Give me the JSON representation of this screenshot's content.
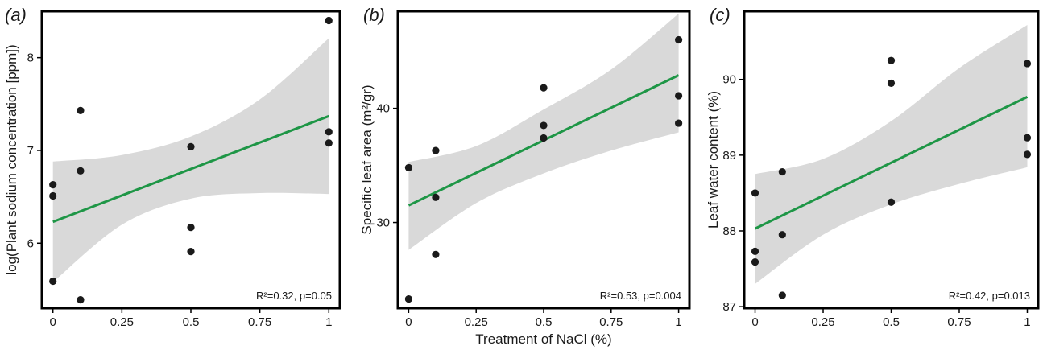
{
  "shared_xlabel": "Treatment of NaCl (%)",
  "chart_data": [
    {
      "type": "scatter",
      "panel_label": "(a)",
      "title": "",
      "xlabel": "",
      "ylabel": "log(Plant sodium concentration [ppm])",
      "xlim": [
        -0.04,
        1.04
      ],
      "ylim": [
        5.3,
        8.5
      ],
      "xticks": [
        0,
        0.25,
        0.5,
        0.75,
        1
      ],
      "xtick_labels": [
        "0",
        "0.25",
        "0.5",
        "0.75",
        "1"
      ],
      "yticks": [
        6,
        7,
        8
      ],
      "ytick_labels": [
        "6",
        "7",
        "8"
      ],
      "points": [
        {
          "x": 0,
          "y": 6.63
        },
        {
          "x": 0,
          "y": 6.51
        },
        {
          "x": 0,
          "y": 5.59
        },
        {
          "x": 0.1,
          "y": 7.43
        },
        {
          "x": 0.1,
          "y": 6.78
        },
        {
          "x": 0.1,
          "y": 5.39
        },
        {
          "x": 0.5,
          "y": 7.04
        },
        {
          "x": 0.5,
          "y": 6.17
        },
        {
          "x": 0.5,
          "y": 5.91
        },
        {
          "x": 1,
          "y": 8.4
        },
        {
          "x": 1,
          "y": 7.2
        },
        {
          "x": 1,
          "y": 7.08
        }
      ],
      "fit": {
        "x0": 0,
        "y0": 6.23,
        "x1": 1,
        "y1": 7.37
      },
      "ci_upper": [
        [
          0,
          6.88
        ],
        [
          0.25,
          6.95
        ],
        [
          0.5,
          7.15
        ],
        [
          0.75,
          7.55
        ],
        [
          1,
          8.21
        ]
      ],
      "ci_lower": [
        [
          0,
          5.58
        ],
        [
          0.25,
          6.2
        ],
        [
          0.5,
          6.48
        ],
        [
          0.75,
          6.54
        ],
        [
          1,
          6.53
        ]
      ],
      "stat_text": "R²=0.32, p=0.05",
      "fit_color": "#1e9646",
      "band_color": "#d9d9d9",
      "point_color": "#1a1a1a"
    },
    {
      "type": "scatter",
      "panel_label": "(b)",
      "title": "",
      "xlabel": "Treatment of NaCl (%)",
      "ylabel": "Specific leaf area (m²/gr)",
      "xlim": [
        -0.04,
        1.04
      ],
      "ylim": [
        22.5,
        48.5
      ],
      "xticks": [
        0,
        0.25,
        0.5,
        0.75,
        1
      ],
      "xtick_labels": [
        "0",
        "0.25",
        "0.5",
        "0.75",
        "1"
      ],
      "yticks": [
        30,
        40
      ],
      "ytick_labels": [
        "30",
        "40"
      ],
      "points": [
        {
          "x": 0,
          "y": 34.8
        },
        {
          "x": 0,
          "y": 23.3
        },
        {
          "x": 0.1,
          "y": 36.3
        },
        {
          "x": 0.1,
          "y": 32.2
        },
        {
          "x": 0.1,
          "y": 27.2
        },
        {
          "x": 0.5,
          "y": 41.8
        },
        {
          "x": 0.5,
          "y": 38.5
        },
        {
          "x": 0.5,
          "y": 37.4
        },
        {
          "x": 1,
          "y": 46.0
        },
        {
          "x": 1,
          "y": 41.1
        },
        {
          "x": 1,
          "y": 38.7
        }
      ],
      "fit": {
        "x0": 0,
        "y0": 31.5,
        "x1": 1,
        "y1": 42.9
      },
      "ci_upper": [
        [
          0,
          35.3
        ],
        [
          0.25,
          36.7
        ],
        [
          0.5,
          39.9
        ],
        [
          0.75,
          43.4
        ],
        [
          1,
          48.3
        ]
      ],
      "ci_lower": [
        [
          0,
          27.6
        ],
        [
          0.25,
          31.7
        ],
        [
          0.5,
          34.3
        ],
        [
          0.75,
          36.3
        ],
        [
          1,
          37.9
        ]
      ],
      "stat_text": "R²=0.53, p=0.004",
      "fit_color": "#1e9646",
      "band_color": "#d9d9d9",
      "point_color": "#1a1a1a"
    },
    {
      "type": "scatter",
      "panel_label": "(c)",
      "title": "",
      "xlabel": "",
      "ylabel": "Leaf water content (%)",
      "xlim": [
        -0.04,
        1.04
      ],
      "ylim": [
        86.98,
        90.9
      ],
      "xticks": [
        0,
        0.25,
        0.5,
        0.75,
        1
      ],
      "xtick_labels": [
        "0",
        "0.25",
        "0.5",
        "0.75",
        "1"
      ],
      "yticks": [
        87,
        88,
        89,
        90
      ],
      "ytick_labels": [
        "87",
        "88",
        "89",
        "90"
      ],
      "points": [
        {
          "x": 0,
          "y": 88.5
        },
        {
          "x": 0,
          "y": 87.73
        },
        {
          "x": 0,
          "y": 87.59
        },
        {
          "x": 0.1,
          "y": 88.78
        },
        {
          "x": 0.1,
          "y": 87.95
        },
        {
          "x": 0.1,
          "y": 87.15
        },
        {
          "x": 0.5,
          "y": 90.25
        },
        {
          "x": 0.5,
          "y": 89.95
        },
        {
          "x": 0.5,
          "y": 88.38
        },
        {
          "x": 1,
          "y": 90.21
        },
        {
          "x": 1,
          "y": 89.23
        },
        {
          "x": 1,
          "y": 89.01
        }
      ],
      "fit": {
        "x0": 0,
        "y0": 88.03,
        "x1": 1,
        "y1": 89.77
      },
      "ci_upper": [
        [
          0,
          88.75
        ],
        [
          0.25,
          88.95
        ],
        [
          0.5,
          89.45
        ],
        [
          0.75,
          90.15
        ],
        [
          1,
          90.72
        ]
      ],
      "ci_lower": [
        [
          0,
          87.3
        ],
        [
          0.25,
          87.95
        ],
        [
          0.5,
          88.35
        ],
        [
          0.75,
          88.62
        ],
        [
          1,
          88.84
        ]
      ],
      "stat_text": "R²=0.42, p=0.013",
      "fit_color": "#1e9646",
      "band_color": "#d9d9d9",
      "point_color": "#1a1a1a"
    }
  ]
}
